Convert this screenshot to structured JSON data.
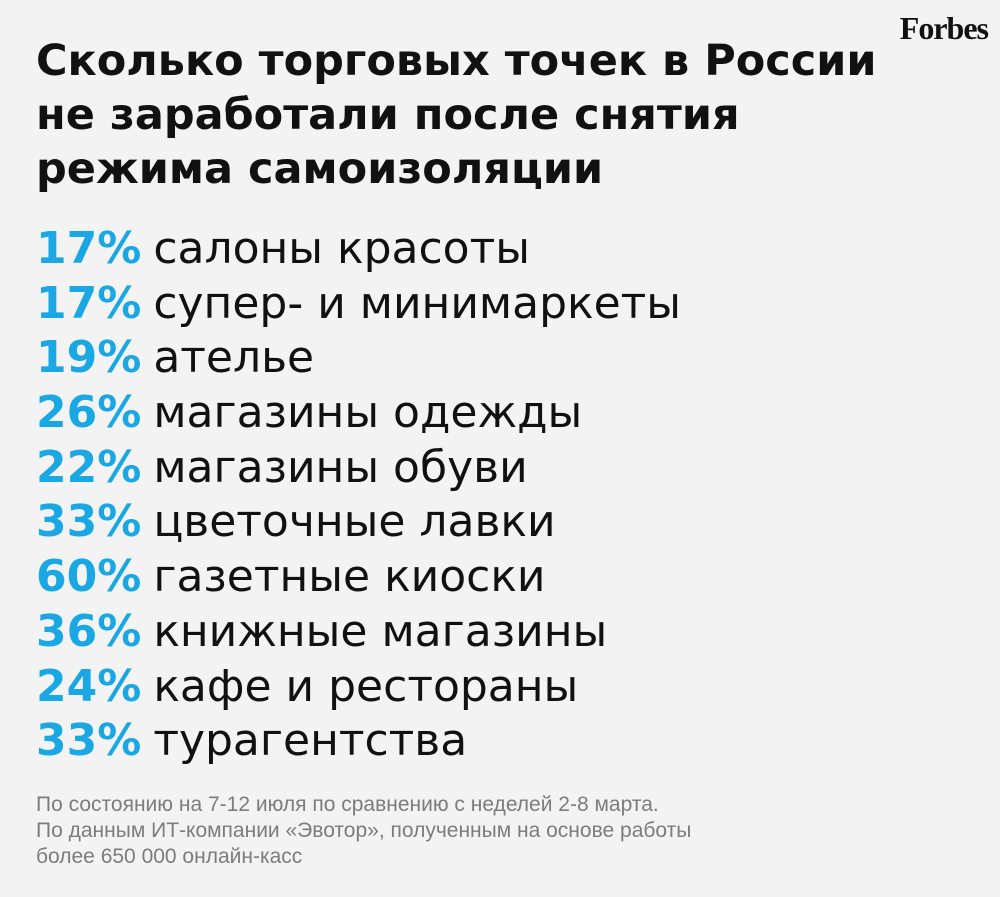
{
  "brand": {
    "logo": "Forbes",
    "accent_color": "#1aa8e5",
    "background_color": "#f3f3f3"
  },
  "title_lines": [
    "Сколько торговых точек в России",
    "не заработали после снятия",
    "режима самоизоляции"
  ],
  "items": [
    {
      "percent": "17%",
      "label": "салоны красоты"
    },
    {
      "percent": "17%",
      "label": "супер- и минимаркеты"
    },
    {
      "percent": "19%",
      "label": "ателье"
    },
    {
      "percent": "26%",
      "label": "магазины одежды"
    },
    {
      "percent": "22%",
      "label": "магазины обуви"
    },
    {
      "percent": "33%",
      "label": "цветочные лавки"
    },
    {
      "percent": "60%",
      "label": "газетные киоски"
    },
    {
      "percent": "36%",
      "label": "книжные магазины"
    },
    {
      "percent": "24%",
      "label": "кафе и рестораны"
    },
    {
      "percent": "33%",
      "label": "турагентства"
    }
  ],
  "footnote_lines": [
    "По состоянию на 7-12 июля по сравнению с неделей 2-8 марта.",
    "По данным ИТ-компании «Эвотор», полученным на основе работы",
    "более 650 000 онлайн-касс"
  ]
}
